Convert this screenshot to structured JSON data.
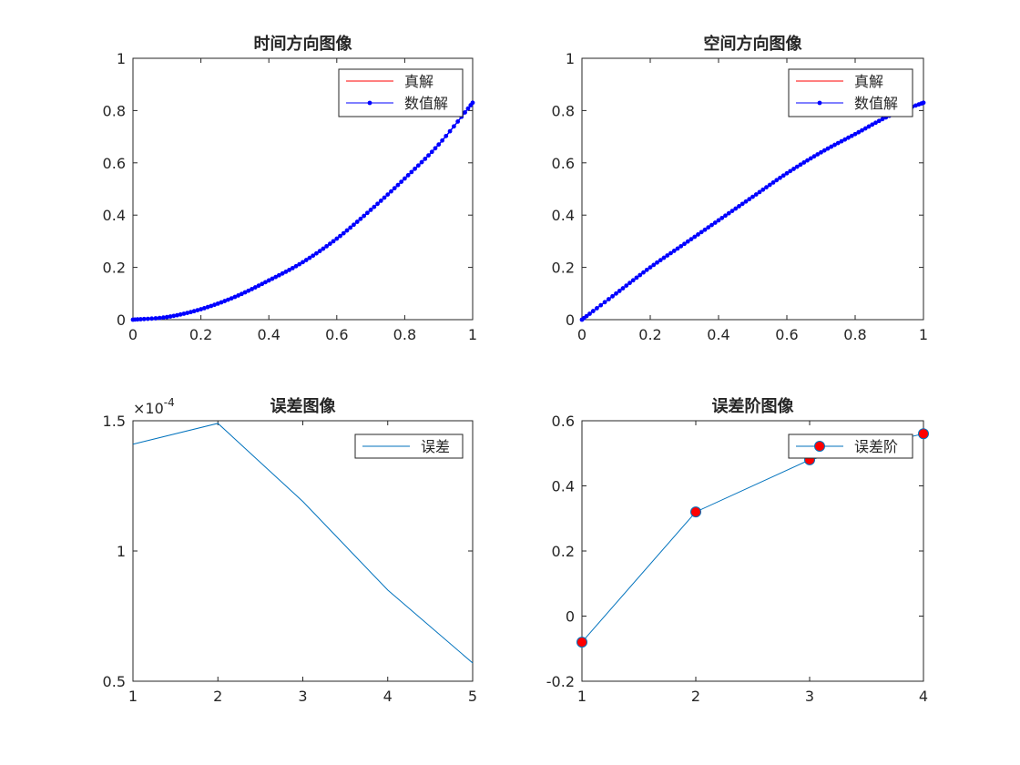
{
  "chart_data": [
    {
      "type": "line",
      "title": "时间方向图像",
      "xlabel": "",
      "ylabel": "",
      "xlim": [
        0,
        1
      ],
      "ylim": [
        0,
        1
      ],
      "xticks": [
        0,
        0.2,
        0.4,
        0.6,
        0.8,
        1
      ],
      "xtick_labels": [
        "0",
        "0.2",
        "0.4",
        "0.6",
        "0.8",
        "1"
      ],
      "yticks": [
        0,
        0.2,
        0.4,
        0.6,
        0.8,
        1
      ],
      "ytick_labels": [
        "0",
        "0.2",
        "0.4",
        "0.6",
        "0.8",
        "1"
      ],
      "legend": "top-right",
      "series": [
        {
          "name": "真解",
          "color": "#ff0000",
          "style": "line",
          "x": [
            0,
            0.1,
            0.2,
            0.3,
            0.4,
            0.5,
            0.6,
            0.7,
            0.8,
            0.9,
            1.0
          ],
          "y": [
            0,
            0.01,
            0.04,
            0.087,
            0.15,
            0.22,
            0.31,
            0.42,
            0.54,
            0.67,
            0.83
          ]
        },
        {
          "name": "数值解",
          "color": "#0000ff",
          "style": "line-dots",
          "x": [
            0,
            0.1,
            0.2,
            0.3,
            0.4,
            0.5,
            0.6,
            0.7,
            0.8,
            0.9,
            1.0
          ],
          "y": [
            0,
            0.01,
            0.04,
            0.087,
            0.15,
            0.22,
            0.31,
            0.42,
            0.54,
            0.67,
            0.83
          ]
        }
      ]
    },
    {
      "type": "line",
      "title": "空间方向图像",
      "xlabel": "",
      "ylabel": "",
      "xlim": [
        0,
        1
      ],
      "ylim": [
        0,
        1
      ],
      "xticks": [
        0,
        0.2,
        0.4,
        0.6,
        0.8,
        1
      ],
      "xtick_labels": [
        "0",
        "0.2",
        "0.4",
        "0.6",
        "0.8",
        "1"
      ],
      "yticks": [
        0,
        0.2,
        0.4,
        0.6,
        0.8,
        1
      ],
      "ytick_labels": [
        "0",
        "0.2",
        "0.4",
        "0.6",
        "0.8",
        "1"
      ],
      "legend": "top-right",
      "series": [
        {
          "name": "真解",
          "color": "#ff0000",
          "style": "line",
          "x": [
            0,
            0.1,
            0.2,
            0.3,
            0.4,
            0.5,
            0.6,
            0.7,
            0.8,
            0.9,
            1.0
          ],
          "y": [
            0,
            0.1,
            0.2,
            0.29,
            0.38,
            0.47,
            0.56,
            0.64,
            0.71,
            0.78,
            0.83
          ]
        },
        {
          "name": "数值解",
          "color": "#0000ff",
          "style": "line-dots",
          "x": [
            0,
            0.1,
            0.2,
            0.3,
            0.4,
            0.5,
            0.6,
            0.7,
            0.8,
            0.9,
            1.0
          ],
          "y": [
            0,
            0.1,
            0.2,
            0.29,
            0.38,
            0.47,
            0.56,
            0.64,
            0.71,
            0.78,
            0.83
          ]
        }
      ]
    },
    {
      "type": "line",
      "title": "误差图像",
      "xlabel": "",
      "ylabel": "",
      "xlim": [
        1,
        5
      ],
      "ylim": [
        0.5,
        1.5
      ],
      "xticks": [
        1,
        2,
        3,
        4,
        5
      ],
      "xtick_labels": [
        "1",
        "2",
        "3",
        "4",
        "5"
      ],
      "yticks": [
        0.5,
        1,
        1.5
      ],
      "ytick_labels": [
        "0.5",
        "1",
        "1.5"
      ],
      "y_exponent_base": "×10",
      "y_exponent_power": "-4",
      "legend": "top-right",
      "series": [
        {
          "name": "误差",
          "color": "#0072bd",
          "style": "line",
          "x": [
            1,
            2,
            3,
            4,
            5
          ],
          "y": [
            1.41,
            1.49,
            1.19,
            0.85,
            0.57
          ]
        }
      ]
    },
    {
      "type": "line",
      "title": "误差阶图像",
      "xlabel": "",
      "ylabel": "",
      "xlim": [
        1,
        4
      ],
      "ylim": [
        -0.2,
        0.6
      ],
      "xticks": [
        1,
        2,
        3,
        4
      ],
      "xtick_labels": [
        "1",
        "2",
        "3",
        "4"
      ],
      "yticks": [
        -0.2,
        0,
        0.2,
        0.4,
        0.6
      ],
      "ytick_labels": [
        "-0.2",
        "0",
        "0.2",
        "0.4",
        "0.6"
      ],
      "legend": "top-right",
      "series": [
        {
          "name": "误差阶",
          "color": "#0072bd",
          "marker_color": "#ff0000",
          "style": "line-circles",
          "x": [
            1,
            2,
            3,
            4
          ],
          "y": [
            -0.08,
            0.32,
            0.48,
            0.56
          ]
        }
      ]
    }
  ]
}
